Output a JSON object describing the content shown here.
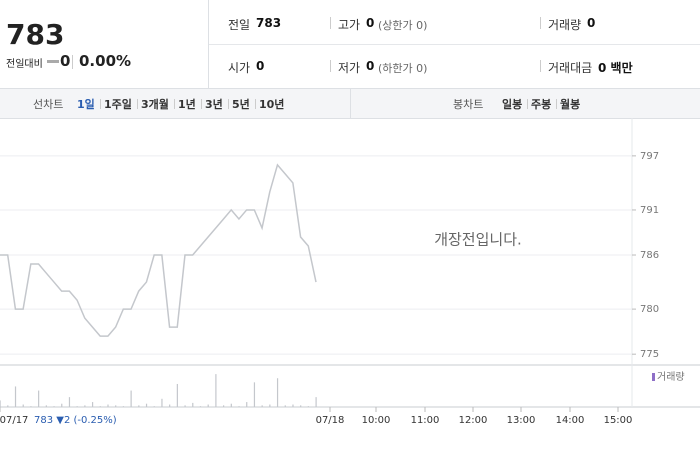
{
  "quote": {
    "price": "783",
    "change_label": "전일대비",
    "change": "0",
    "change_pct": "0.00%"
  },
  "stats": [
    {
      "label": "전일",
      "value": "783"
    },
    {
      "label": "고가",
      "value": "0",
      "note": "(상한가 0)"
    },
    {
      "label": "거래량",
      "value": "0"
    },
    {
      "label": "시가",
      "value": "0"
    },
    {
      "label": "저가",
      "value": "0",
      "note": "(하한가 0)"
    },
    {
      "label": "거래대금",
      "value": "0 백만"
    }
  ],
  "tabs": {
    "line_label": "선차트",
    "line_periods": [
      "1일",
      "1주일",
      "3개월",
      "1년",
      "3년",
      "5년",
      "10년"
    ],
    "active": 0,
    "candle_label": "봉차트",
    "candle_periods": [
      "일봉",
      "주봉",
      "월봉"
    ]
  },
  "chart_data": {
    "type": "line",
    "color": "#c4c7cc",
    "values": [
      786,
      786,
      780,
      780,
      785,
      785,
      784,
      783,
      782,
      782,
      781,
      779,
      778,
      777,
      777,
      778,
      780,
      780,
      782,
      783,
      786,
      786,
      778,
      778,
      786,
      786,
      787,
      788,
      789,
      790,
      791,
      790,
      791,
      791,
      789,
      793,
      796,
      795,
      794,
      788,
      787,
      783
    ],
    "ylim": [
      773.8,
      801.2
    ],
    "yticks": [
      775,
      780,
      786,
      791,
      797
    ],
    "grid": true,
    "volume": {
      "name": "거래량",
      "color": "#c4c7cc",
      "values": [
        8,
        2,
        25,
        3,
        1,
        20,
        2,
        1,
        4,
        12,
        1,
        2,
        6,
        1,
        3,
        2,
        1,
        20,
        2,
        4,
        1,
        10,
        3,
        28,
        2,
        5,
        1,
        3,
        40,
        2,
        4,
        1,
        6,
        30,
        2,
        3,
        35,
        2,
        3,
        2,
        1,
        12
      ],
      "ylim": [
        0,
        45
      ]
    },
    "x_labels": [
      "07/17",
      "07/18",
      "10:00",
      "11:00",
      "12:00",
      "13:00",
      "14:00",
      "15:00"
    ],
    "annotation": "783 ▼2 (-0.25%)",
    "message": "개장전입니다."
  }
}
